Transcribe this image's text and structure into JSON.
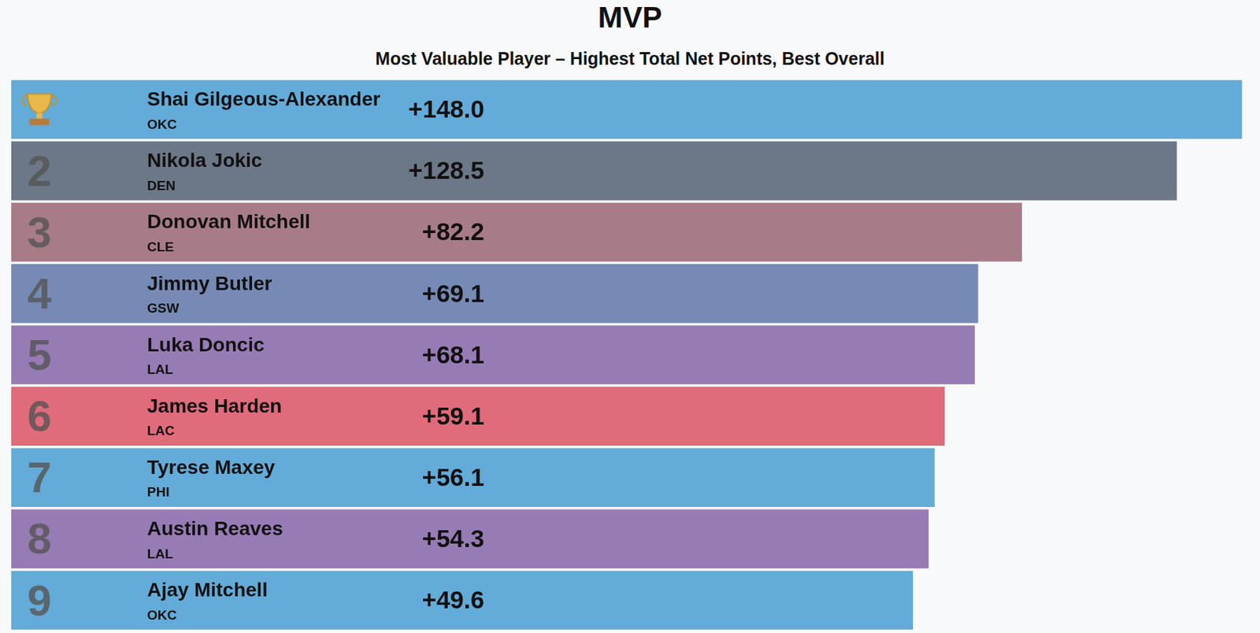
{
  "chart_data": {
    "type": "bar",
    "orientation": "horizontal",
    "title": "MVP",
    "subtitle": "Most Valuable Player – Highest Total Net Points, Best Overall",
    "categories": [
      "Shai Gilgeous-Alexander",
      "Nikola Jokic",
      "Donovan Mitchell",
      "Jimmy Butler",
      "Luka Doncic",
      "James Harden",
      "Tyrese Maxey",
      "Austin Reaves",
      "Ajay Mitchell"
    ],
    "teams": [
      "OKC",
      "DEN",
      "CLE",
      "GSW",
      "LAL",
      "LAC",
      "PHI",
      "LAL",
      "OKC"
    ],
    "ranks": [
      null,
      2,
      3,
      4,
      5,
      6,
      7,
      8,
      9
    ],
    "values": [
      148.0,
      128.5,
      82.2,
      69.1,
      68.1,
      59.1,
      56.1,
      54.3,
      49.6
    ],
    "value_labels": [
      "+148.0",
      "+128.5",
      "+82.2",
      "+69.1",
      "+68.1",
      "+59.1",
      "+56.1",
      "+54.3",
      "+49.6"
    ],
    "colors": [
      "#63abd8",
      "#6c7787",
      "#a87b88",
      "#768ab5",
      "#977bb5",
      "#e06b7b",
      "#63abd8",
      "#977bb5",
      "#63abd8"
    ],
    "xlim": [
      -220,
      150
    ],
    "xticks": [],
    "tick_labels": false,
    "grid": false,
    "data_labels": true
  }
}
